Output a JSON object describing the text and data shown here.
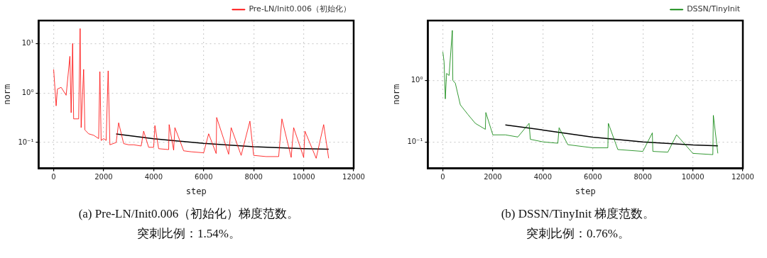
{
  "chart_data": [
    {
      "type": "line",
      "xlabel": "step",
      "ylabel": "norm",
      "log": "y",
      "grid": true,
      "legend": "top right",
      "xlim": [
        -600,
        12000
      ],
      "xticks": [
        0,
        2000,
        4000,
        6000,
        8000,
        10000,
        12000
      ],
      "ylim": [
        0.03,
        29
      ],
      "yticks": [
        {
          "value": 0.1,
          "label": "10⁻¹"
        },
        {
          "value": 1,
          "label": "10⁰"
        },
        {
          "value": 10,
          "label": "10¹"
        }
      ],
      "series": [
        {
          "name": "Pre-LN/Init0.006（初始化）",
          "color": "#ff0000",
          "x": [
            0,
            100,
            150,
            300,
            500,
            650,
            700,
            760,
            800,
            1000,
            1060,
            1100,
            1200,
            1250,
            1400,
            1600,
            1800,
            1850,
            1900,
            2000,
            2100,
            2180,
            2250,
            2500,
            2600,
            2800,
            3000,
            3200,
            3500,
            3600,
            3800,
            4000,
            4050,
            4200,
            4600,
            4620,
            4800,
            4850,
            5200,
            5500,
            6000,
            6200,
            6500,
            6520,
            7000,
            7100,
            7500,
            7850,
            8000,
            8500,
            9000,
            9130,
            9500,
            9600,
            10000,
            10050,
            10500,
            10800,
            11000
          ],
          "values": [
            3.0,
            0.55,
            1.2,
            1.3,
            0.9,
            5.5,
            0.4,
            10,
            0.3,
            0.3,
            20,
            0.2,
            3,
            0.18,
            0.15,
            0.14,
            0.12,
            2.7,
            0.11,
            0.12,
            0.11,
            2.8,
            0.09,
            0.1,
            0.25,
            0.095,
            0.09,
            0.09,
            0.085,
            0.17,
            0.08,
            0.08,
            0.22,
            0.075,
            0.072,
            0.23,
            0.07,
            0.2,
            0.068,
            0.065,
            0.062,
            0.15,
            0.06,
            0.32,
            0.058,
            0.2,
            0.055,
            0.27,
            0.055,
            0.052,
            0.052,
            0.3,
            0.05,
            0.2,
            0.05,
            0.17,
            0.048,
            0.23,
            0.048
          ]
        },
        {
          "color": "#000000",
          "x": [
            2500,
            4000,
            6000,
            8000,
            10000,
            11000
          ],
          "values": [
            0.149,
            0.119,
            0.096,
            0.082,
            0.075,
            0.073
          ]
        }
      ],
      "annotations": [
        "(a) Pre-LN/Init0.006（初始化）梯度范数。",
        "突刺比例：1.54%。"
      ]
    },
    {
      "type": "line",
      "xlabel": "step",
      "ylabel": "norm",
      "log": "y",
      "grid": true,
      "legend": "top right",
      "xlim": [
        -600,
        12000
      ],
      "xticks": [
        0,
        2000,
        4000,
        6000,
        8000,
        10000,
        12000
      ],
      "ylim": [
        0.037,
        9.4
      ],
      "yticks": [
        {
          "value": 0.1,
          "label": "10⁻¹"
        },
        {
          "value": 1,
          "label": "10⁰"
        }
      ],
      "series": [
        {
          "name": "DSSN/TinyInit",
          "color": "#008000",
          "x": [
            0,
            50,
            100,
            150,
            250,
            380,
            400,
            500,
            700,
            1000,
            1300,
            1700,
            1720,
            2000,
            2500,
            3000,
            3450,
            3500,
            4000,
            4600,
            4650,
            5000,
            6000,
            6600,
            6620,
            7000,
            8000,
            8380,
            8400,
            9000,
            9350,
            10000,
            10800,
            10820,
            11000
          ],
          "values": [
            2.9,
            2.0,
            0.5,
            1.3,
            1.2,
            6.5,
            1.0,
            0.9,
            0.4,
            0.28,
            0.2,
            0.16,
            0.3,
            0.13,
            0.13,
            0.12,
            0.2,
            0.11,
            0.1,
            0.095,
            0.17,
            0.09,
            0.08,
            0.08,
            0.2,
            0.075,
            0.07,
            0.14,
            0.07,
            0.068,
            0.13,
            0.065,
            0.062,
            0.27,
            0.065
          ]
        },
        {
          "color": "#000000",
          "x": [
            2500,
            4000,
            6000,
            8000,
            10000,
            11000
          ],
          "values": [
            0.189,
            0.156,
            0.119,
            0.1,
            0.089,
            0.086
          ]
        }
      ],
      "annotations": [
        "(b) DSSN/TinyInit 梯度范数。",
        "突刺比例：0.76%。"
      ]
    }
  ]
}
